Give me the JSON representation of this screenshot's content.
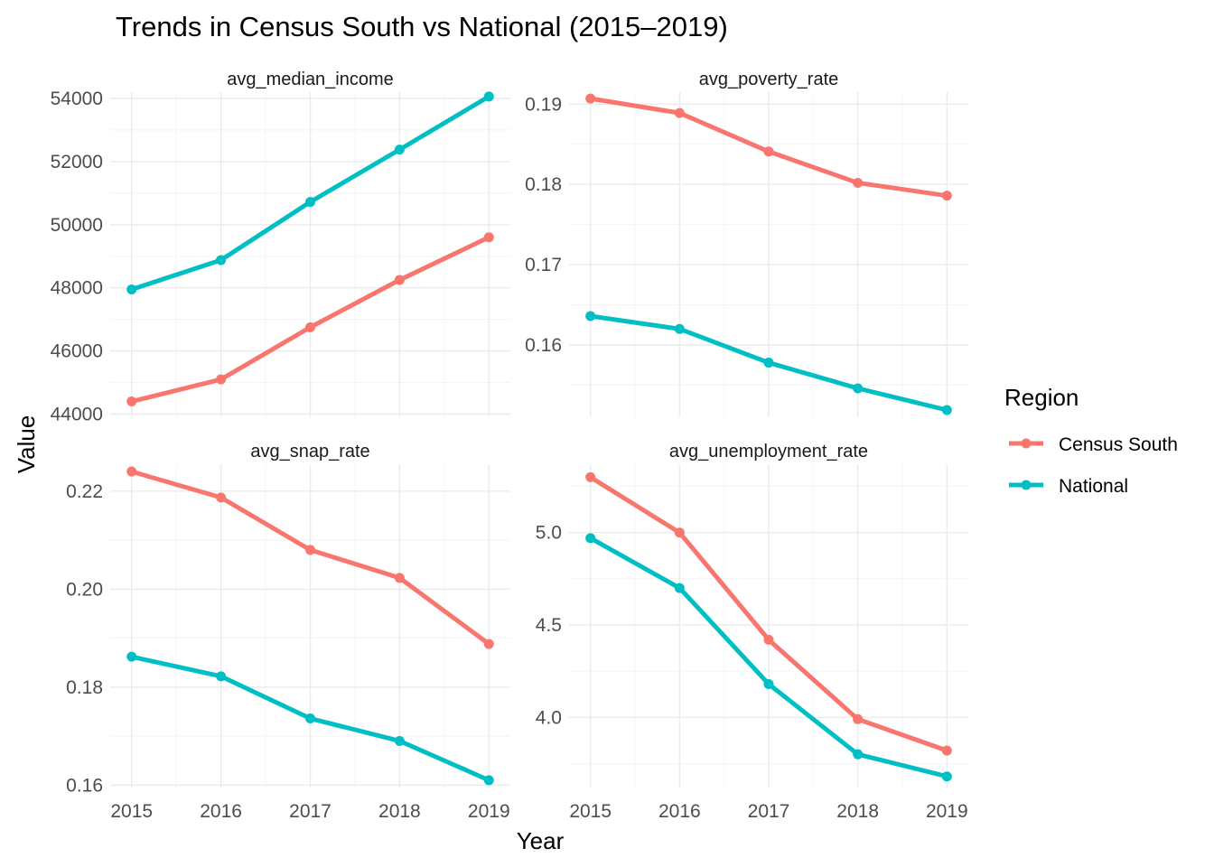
{
  "chart_data": {
    "type": "line",
    "title": "Trends in Census South vs National (2015–2019)",
    "xlabel": "Year",
    "ylabel": "Value",
    "legend": {
      "title": "Region",
      "placement": "right",
      "entries": [
        {
          "name": "Census South",
          "color": "#F8766D"
        },
        {
          "name": "National",
          "color": "#00BFC4"
        }
      ]
    },
    "x": [
      2015,
      2016,
      2017,
      2018,
      2019
    ],
    "grid": true,
    "panels": [
      {
        "name": "avg_median_income",
        "ylim": [
          43900,
          54200
        ],
        "yticks": [
          44000,
          46000,
          48000,
          50000,
          52000,
          54000
        ],
        "ytick_labels": [
          "44000",
          "46000",
          "48000",
          "50000",
          "52000",
          "54000"
        ],
        "series": [
          {
            "name": "Census South",
            "values": [
              44400,
              45100,
              46750,
              48250,
              49600
            ]
          },
          {
            "name": "National",
            "values": [
              47950,
              48880,
              50720,
              52380,
              54060
            ]
          }
        ]
      },
      {
        "name": "avg_poverty_rate",
        "ylim": [
          0.151,
          0.1915
        ],
        "yticks": [
          0.16,
          0.17,
          0.18,
          0.19
        ],
        "ytick_labels": [
          "0.16",
          "0.17",
          "0.18",
          "0.19"
        ],
        "series": [
          {
            "name": "Census South",
            "values": [
              0.1907,
              0.1889,
              0.1841,
              0.1802,
              0.1786
            ]
          },
          {
            "name": "National",
            "values": [
              0.1636,
              0.162,
              0.1578,
              0.1546,
              0.1519
            ]
          }
        ]
      },
      {
        "name": "avg_snap_rate",
        "ylim": [
          0.1595,
          0.2255
        ],
        "yticks": [
          0.16,
          0.18,
          0.2,
          0.22
        ],
        "ytick_labels": [
          "0.16",
          "0.18",
          "0.20",
          "0.22"
        ],
        "series": [
          {
            "name": "Census South",
            "values": [
              0.224,
              0.2187,
              0.208,
              0.2023,
              0.1888
            ]
          },
          {
            "name": "National",
            "values": [
              0.1862,
              0.1822,
              0.1736,
              0.169,
              0.161
            ]
          }
        ]
      },
      {
        "name": "avg_unemployment_rate",
        "ylim": [
          3.62,
          5.37
        ],
        "yticks": [
          4.0,
          4.5,
          5.0
        ],
        "ytick_labels": [
          "4.0",
          "4.5",
          "5.0"
        ],
        "series": [
          {
            "name": "Census South",
            "values": [
              5.3,
              5.0,
              4.42,
              3.99,
              3.82
            ]
          },
          {
            "name": "National",
            "values": [
              4.97,
              4.7,
              4.18,
              3.8,
              3.68
            ]
          }
        ]
      }
    ]
  }
}
